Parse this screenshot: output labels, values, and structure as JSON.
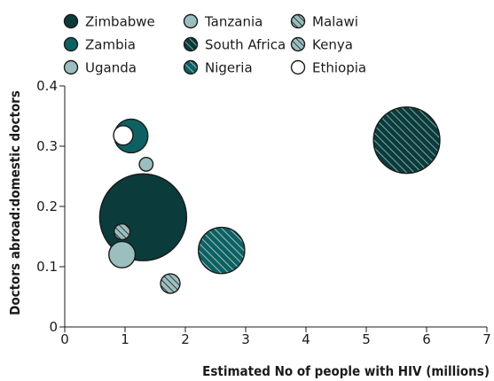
{
  "colors": {
    "dark_teal": "#0b3b3a",
    "teal": "#0d6163",
    "light_teal": "#9bbfbf",
    "white": "#ffffff",
    "stroke": "#1b1b1b"
  },
  "chart_data": {
    "type": "bubble",
    "xlabel": "Estimated No of people with HIV (millions)",
    "ylabel": "Doctors abroad:domestic doctors",
    "xlim": [
      0,
      7
    ],
    "ylim": [
      0,
      0.4
    ],
    "x_ticks": [
      0,
      1,
      2,
      3,
      4,
      5,
      6,
      7
    ],
    "y_ticks": [
      0,
      0.1,
      0.2,
      0.3,
      0.4
    ],
    "x_tick_labels": [
      "0",
      "1",
      "2",
      "3",
      "4",
      "5",
      "6",
      "7"
    ],
    "y_tick_labels": [
      "0",
      "0.1",
      "0.2",
      "0.3",
      "0.4"
    ],
    "grid": false,
    "legend_position": "top",
    "series": [
      {
        "name": "Zimbabwe",
        "x": 1.3,
        "y": 0.182,
        "size": 6.0,
        "fill": "dark_teal",
        "hatch": false
      },
      {
        "name": "Zambia",
        "x": 1.1,
        "y": 0.317,
        "size": 0.9,
        "fill": "teal",
        "hatch": false
      },
      {
        "name": "Uganda",
        "x": 0.95,
        "y": 0.12,
        "size": 0.55,
        "fill": "light_teal",
        "hatch": false
      },
      {
        "name": "Tanzania",
        "x": 1.35,
        "y": 0.27,
        "size": 0.15,
        "fill": "light_teal",
        "hatch": false
      },
      {
        "name": "South Africa",
        "x": 5.67,
        "y": 0.31,
        "size": 3.5,
        "fill": "dark_teal",
        "hatch": true
      },
      {
        "name": "Nigeria",
        "x": 2.6,
        "y": 0.127,
        "size": 1.7,
        "fill": "teal",
        "hatch": true
      },
      {
        "name": "Malawi",
        "x": 0.95,
        "y": 0.158,
        "size": 0.2,
        "fill": "light_teal",
        "hatch": true
      },
      {
        "name": "Kenya",
        "x": 1.75,
        "y": 0.072,
        "size": 0.3,
        "fill": "light_teal",
        "hatch": true
      },
      {
        "name": "Ethiopia",
        "x": 0.97,
        "y": 0.318,
        "size": 0.3,
        "fill": "white",
        "hatch": false
      }
    ],
    "legend_order": [
      "Zimbabwe",
      "Tanzania",
      "Malawi",
      "Zambia",
      "South Africa",
      "Kenya",
      "Uganda",
      "Nigeria",
      "Ethiopia"
    ]
  }
}
